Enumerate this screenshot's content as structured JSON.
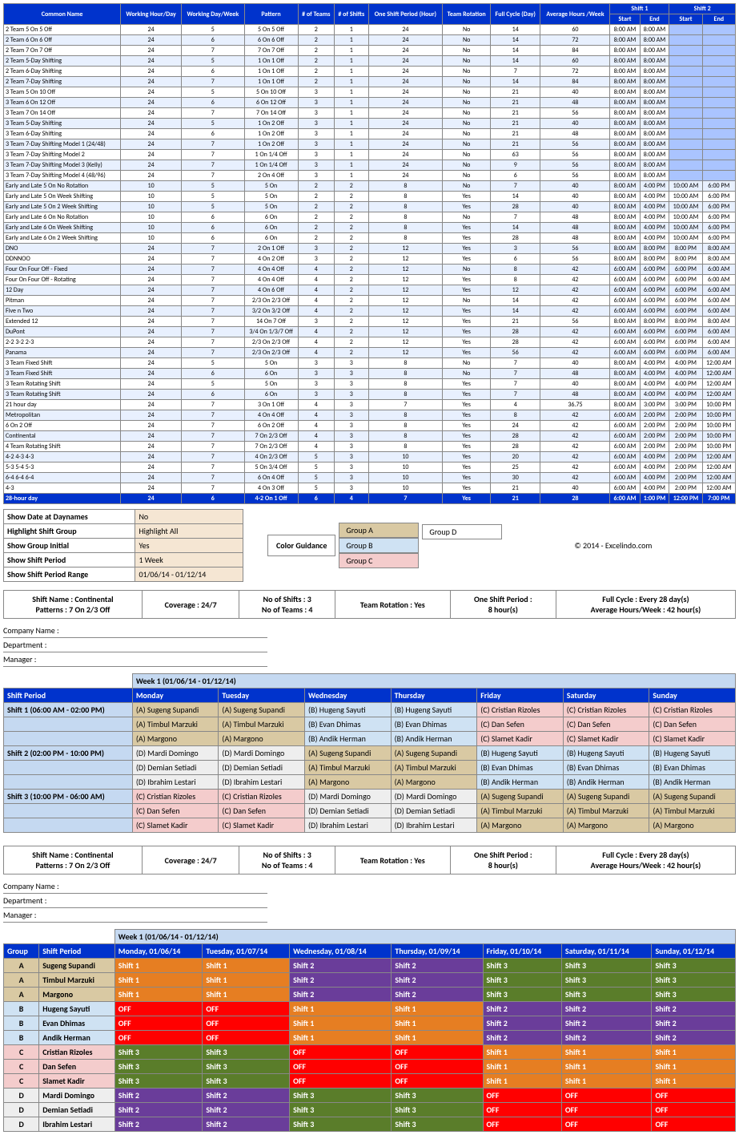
{
  "topHeaders": [
    "Common Name",
    "Working Hour/Day",
    "Working Day/Week",
    "Pattern",
    "# of Teams",
    "# of Shifts",
    "One Shift Period (Hour)",
    "Team Rotation",
    "Full Cycle (Day)",
    "Average Hours /Week",
    "Shift 1 Start",
    "Shift 1 End",
    "Shift 2 Start",
    "Shift 2 End"
  ],
  "topRows": [
    [
      "2 Team 5 On 5 Off",
      "24",
      "5",
      "5 On 5 Off",
      "2",
      "1",
      "24",
      "No",
      "14",
      "60",
      "8:00 AM",
      "8:00 AM",
      "",
      ""
    ],
    [
      "2 Team 6 On 6 Off",
      "24",
      "6",
      "6 On 6 Off",
      "2",
      "1",
      "24",
      "No",
      "14",
      "72",
      "8:00 AM",
      "8:00 AM",
      "",
      ""
    ],
    [
      "2 Team 7 On 7 Off",
      "24",
      "7",
      "7 On 7 Off",
      "2",
      "1",
      "24",
      "No",
      "14",
      "84",
      "8:00 AM",
      "8:00 AM",
      "",
      ""
    ],
    [
      "2 Team 5-Day Shifting",
      "24",
      "5",
      "1 On 1 Off",
      "2",
      "1",
      "24",
      "No",
      "14",
      "60",
      "8:00 AM",
      "8:00 AM",
      "",
      ""
    ],
    [
      "2 Team 6-Day Shifting",
      "24",
      "6",
      "1 On 1 Off",
      "2",
      "1",
      "24",
      "No",
      "7",
      "72",
      "8:00 AM",
      "8:00 AM",
      "",
      ""
    ],
    [
      "2 Team 7-Day Shifting",
      "24",
      "7",
      "1 On 1 Off",
      "2",
      "1",
      "24",
      "No",
      "14",
      "84",
      "8:00 AM",
      "8:00 AM",
      "",
      ""
    ],
    [
      "3 Team 5 On 10 Off",
      "24",
      "5",
      "5 On 10 Off",
      "3",
      "1",
      "24",
      "No",
      "21",
      "40",
      "8:00 AM",
      "8:00 AM",
      "",
      ""
    ],
    [
      "3 Team 6 On 12 Off",
      "24",
      "6",
      "6 On 12 Off",
      "3",
      "1",
      "24",
      "No",
      "21",
      "48",
      "8:00 AM",
      "8:00 AM",
      "",
      ""
    ],
    [
      "3 Team 7 On 14 Off",
      "24",
      "7",
      "7 On 14 Off",
      "3",
      "1",
      "24",
      "No",
      "21",
      "56",
      "8:00 AM",
      "8:00 AM",
      "",
      ""
    ],
    [
      "3 Team 5-Day Shifting",
      "24",
      "5",
      "1 On 2 Off",
      "3",
      "1",
      "24",
      "No",
      "21",
      "40",
      "8:00 AM",
      "8:00 AM",
      "",
      ""
    ],
    [
      "3 Team 6-Day Shifting",
      "24",
      "6",
      "1 On 2 Off",
      "3",
      "1",
      "24",
      "No",
      "21",
      "48",
      "8:00 AM",
      "8:00 AM",
      "",
      ""
    ],
    [
      "3 Team 7-Day Shifting Model 1 (24/48)",
      "24",
      "7",
      "1 On 2 Off",
      "3",
      "1",
      "24",
      "No",
      "21",
      "56",
      "8:00 AM",
      "8:00 AM",
      "",
      ""
    ],
    [
      "3 Team 7-Day Shifting Model 2",
      "24",
      "7",
      "1 On 1/4 Off",
      "3",
      "1",
      "24",
      "No",
      "63",
      "56",
      "8:00 AM",
      "8:00 AM",
      "",
      ""
    ],
    [
      "3 Team 7-Day Shifting Model 3 (Kelly)",
      "24",
      "7",
      "1 On 1/4 Off",
      "3",
      "1",
      "24",
      "No",
      "9",
      "56",
      "8:00 AM",
      "8:00 AM",
      "",
      ""
    ],
    [
      "3 Team 7-Day Shifting Model 4 (48/96)",
      "24",
      "7",
      "2 On 4 Off",
      "3",
      "1",
      "24",
      "No",
      "6",
      "56",
      "8:00 AM",
      "8:00 AM",
      "",
      ""
    ],
    [
      "Early and Late 5 On No Rotation",
      "10",
      "5",
      "5 On",
      "2",
      "2",
      "8",
      "No",
      "7",
      "40",
      "8:00 AM",
      "4:00 PM",
      "10:00 AM",
      "6:00 PM"
    ],
    [
      "Early and Late 5 On Week Shifting",
      "10",
      "5",
      "5 On",
      "2",
      "2",
      "8",
      "Yes",
      "14",
      "40",
      "8:00 AM",
      "4:00 PM",
      "10:00 AM",
      "6:00 PM"
    ],
    [
      "Early and Late 5 On 2 Week Shifting",
      "10",
      "5",
      "5 On",
      "2",
      "2",
      "8",
      "Yes",
      "28",
      "40",
      "8:00 AM",
      "4:00 PM",
      "10:00 AM",
      "6:00 PM"
    ],
    [
      "Early and Late 6 On No Rotation",
      "10",
      "6",
      "6 On",
      "2",
      "2",
      "8",
      "No",
      "7",
      "48",
      "8:00 AM",
      "4:00 PM",
      "10:00 AM",
      "6:00 PM"
    ],
    [
      "Early and Late 6 On Week Shifting",
      "10",
      "6",
      "6 On",
      "2",
      "2",
      "8",
      "Yes",
      "14",
      "48",
      "8:00 AM",
      "4:00 PM",
      "10:00 AM",
      "6:00 PM"
    ],
    [
      "Early and Late 6 On 2 Week Shifting",
      "10",
      "6",
      "6 On",
      "2",
      "2",
      "8",
      "Yes",
      "28",
      "48",
      "8:00 AM",
      "4:00 PM",
      "10:00 AM",
      "6:00 PM"
    ],
    [
      "DNO",
      "24",
      "7",
      "2 On 1 Off",
      "3",
      "2",
      "12",
      "Yes",
      "3",
      "56",
      "8:00 AM",
      "8:00 PM",
      "8:00 PM",
      "8:00 AM"
    ],
    [
      "DDNNOO",
      "24",
      "7",
      "4 On 2 Off",
      "3",
      "2",
      "12",
      "Yes",
      "6",
      "56",
      "8:00 AM",
      "8:00 PM",
      "8:00 PM",
      "8:00 AM"
    ],
    [
      "Four On Four Off - Fixed",
      "24",
      "7",
      "4 On 4 Off",
      "4",
      "2",
      "12",
      "No",
      "8",
      "42",
      "6:00 AM",
      "6:00 PM",
      "6:00 PM",
      "6:00 AM"
    ],
    [
      "Four On Four Off - Rotating",
      "24",
      "7",
      "4 On 4 Off",
      "4",
      "2",
      "12",
      "Yes",
      "8",
      "42",
      "6:00 AM",
      "6:00 PM",
      "6:00 PM",
      "6:00 AM"
    ],
    [
      "12 Day",
      "24",
      "7",
      "4 On 6 Off",
      "4",
      "2",
      "12",
      "Yes",
      "12",
      "42",
      "6:00 AM",
      "6:00 PM",
      "6:00 PM",
      "6:00 AM"
    ],
    [
      "Pitman",
      "24",
      "7",
      "2/3 On 2/3 Off",
      "4",
      "2",
      "12",
      "No",
      "14",
      "42",
      "6:00 AM",
      "6:00 PM",
      "6:00 PM",
      "6:00 AM"
    ],
    [
      "Five n Two",
      "24",
      "7",
      "3/2 On 3/2 Off",
      "4",
      "2",
      "12",
      "Yes",
      "14",
      "42",
      "6:00 AM",
      "6:00 PM",
      "6:00 PM",
      "6:00 AM"
    ],
    [
      "Extended 12",
      "24",
      "7",
      "14 On 7 Off",
      "3",
      "2",
      "12",
      "Yes",
      "21",
      "56",
      "8:00 AM",
      "8:00 PM",
      "8:00 PM",
      "8:00 AM"
    ],
    [
      "DuPont",
      "24",
      "7",
      "3/4 On 1/3/7 Off",
      "4",
      "2",
      "12",
      "Yes",
      "28",
      "42",
      "6:00 AM",
      "6:00 PM",
      "6:00 PM",
      "6:00 AM"
    ],
    [
      "2-2 3-2 2-3",
      "24",
      "7",
      "2/3 On 2/3 Off",
      "4",
      "2",
      "12",
      "Yes",
      "28",
      "42",
      "6:00 AM",
      "6:00 PM",
      "6:00 PM",
      "6:00 AM"
    ],
    [
      "Panama",
      "24",
      "7",
      "2/3 On 2/3 Off",
      "4",
      "2",
      "12",
      "Yes",
      "56",
      "42",
      "6:00 AM",
      "6:00 PM",
      "6:00 PM",
      "6:00 AM"
    ],
    [
      "3 Team Fixed Shift",
      "24",
      "5",
      "5 On",
      "3",
      "3",
      "8",
      "No",
      "7",
      "40",
      "8:00 AM",
      "4:00 PM",
      "4:00 PM",
      "12:00 AM"
    ],
    [
      "3 Team Fixed Shift",
      "24",
      "6",
      "6 On",
      "3",
      "3",
      "8",
      "No",
      "7",
      "48",
      "8:00 AM",
      "4:00 PM",
      "4:00 PM",
      "12:00 AM"
    ],
    [
      "3 Team Rotating Shift",
      "24",
      "5",
      "5 On",
      "3",
      "3",
      "8",
      "Yes",
      "7",
      "40",
      "8:00 AM",
      "4:00 PM",
      "4:00 PM",
      "12:00 AM"
    ],
    [
      "3 Team Rotating Shift",
      "24",
      "6",
      "6 On",
      "3",
      "3",
      "8",
      "Yes",
      "7",
      "48",
      "8:00 AM",
      "4:00 PM",
      "4:00 PM",
      "12:00 AM"
    ],
    [
      "21 hour day",
      "24",
      "7",
      "3 On 1 Off",
      "4",
      "3",
      "7",
      "Yes",
      "4",
      "36.75",
      "8:00 AM",
      "3:00 PM",
      "3:00 PM",
      "10:00 PM"
    ],
    [
      "Metropolitan",
      "24",
      "7",
      "4 On 4 Off",
      "4",
      "3",
      "8",
      "Yes",
      "8",
      "42",
      "6:00 AM",
      "2:00 PM",
      "2:00 PM",
      "10:00 PM"
    ],
    [
      "6 On 2 Off",
      "24",
      "7",
      "6 On 2 Off",
      "4",
      "3",
      "8",
      "Yes",
      "24",
      "42",
      "6:00 AM",
      "2:00 PM",
      "2:00 PM",
      "10:00 PM"
    ],
    [
      "Continental",
      "24",
      "7",
      "7 On 2/3 Off",
      "4",
      "3",
      "8",
      "Yes",
      "28",
      "42",
      "6:00 AM",
      "2:00 PM",
      "2:00 PM",
      "10:00 PM"
    ],
    [
      "4 Team Rotating Shift",
      "24",
      "7",
      "7 On 2/3 Off",
      "4",
      "3",
      "8",
      "Yes",
      "28",
      "42",
      "6:00 AM",
      "2:00 PM",
      "2:00 PM",
      "10:00 PM"
    ],
    [
      "4-2 4-3 4-3",
      "24",
      "7",
      "4 On 2/3 Off",
      "5",
      "3",
      "10",
      "Yes",
      "20",
      "42",
      "6:00 AM",
      "4:00 PM",
      "2:00 PM",
      "12:00 AM"
    ],
    [
      "5-3 5-4 5-3",
      "24",
      "7",
      "5 On 3/4 Off",
      "5",
      "3",
      "10",
      "Yes",
      "25",
      "42",
      "6:00 AM",
      "4:00 PM",
      "2:00 PM",
      "12:00 AM"
    ],
    [
      "6-4 6-4 6-4",
      "24",
      "7",
      "6 On 4 Off",
      "5",
      "3",
      "10",
      "Yes",
      "30",
      "42",
      "6:00 AM",
      "4:00 PM",
      "2:00 PM",
      "12:00 AM"
    ],
    [
      "4-3",
      "24",
      "7",
      "4 On 3 Off",
      "5",
      "3",
      "10",
      "Yes",
      "21",
      "40",
      "6:00 AM",
      "4:00 PM",
      "2:00 PM",
      "12:00 AM"
    ]
  ],
  "topFooter": [
    "28-hour day",
    "24",
    "6",
    "4-2 On 1 Off",
    "6",
    "4",
    "7",
    "Yes",
    "21",
    "28",
    "6:00 AM",
    "1:00 PM",
    "12:00 PM",
    "7:00 PM"
  ],
  "settings": [
    [
      "Show Date at Daynames",
      "No"
    ],
    [
      "Highlight Shift Group",
      "Highlight All"
    ],
    [
      "Show Group Initial",
      "Yes"
    ],
    [
      "Show Shift Period",
      "1 Week"
    ],
    [
      "Show Shift Period Range",
      "01/06/14 - 01/12/14"
    ]
  ],
  "colorGuidance": {
    "label": "Color Guidance",
    "groups": [
      "Group A",
      "Group B",
      "Group C",
      "Group D"
    ]
  },
  "copyright": "© 2014 - Excelindo.com",
  "infoBar": [
    [
      "Shift Name : Continental",
      "Patterns : 7 On 2/3 Off"
    ],
    [
      "Coverage : 24/7"
    ],
    [
      "No of Shifts : 3",
      "No of Teams : 4"
    ],
    [
      "Team Rotation : Yes"
    ],
    [
      "One Shift Period :",
      "8 hour(s)"
    ],
    [
      "Full Cycle : Every 28 day(s)",
      "Average Hours/Week : 42 hour(s)"
    ]
  ],
  "metaLines": [
    "Company Name :",
    "Department :",
    "Manager :"
  ],
  "weekLabel": "Week 1 (01/06/14 - 01/12/14)",
  "sched1": {
    "headers": [
      "Shift Period",
      "Monday",
      "Tuesday",
      "Wednesday",
      "Thursday",
      "Friday",
      "Saturday",
      "Sunday"
    ],
    "periods": [
      "Shift 1 (06:00 AM - 02:00 PM)",
      "Shift 2 (02:00 PM - 10:00 PM)",
      "Shift 3 (10:00 PM - 06:00 AM)"
    ],
    "block1": [
      [
        [
          "A",
          "(A) Sugeng Supandi"
        ],
        [
          "A",
          "(A) Sugeng Supandi"
        ],
        [
          "B",
          "(B) Hugeng Sayuti"
        ],
        [
          "B",
          "(B) Hugeng Sayuti"
        ],
        [
          "C",
          "(C) Cristian Rizoles"
        ],
        [
          "C",
          "(C) Cristian Rizoles"
        ],
        [
          "C",
          "(C) Cristian Rizoles"
        ]
      ],
      [
        [
          "A",
          "(A) Timbul Marzuki"
        ],
        [
          "A",
          "(A) Timbul Marzuki"
        ],
        [
          "B",
          "(B) Evan Dhimas"
        ],
        [
          "B",
          "(B) Evan Dhimas"
        ],
        [
          "C",
          "(C) Dan Sefen"
        ],
        [
          "C",
          "(C) Dan Sefen"
        ],
        [
          "C",
          "(C) Dan Sefen"
        ]
      ],
      [
        [
          "A",
          "(A) Margono"
        ],
        [
          "A",
          "(A) Margono"
        ],
        [
          "B",
          "(B) Andik Herman"
        ],
        [
          "B",
          "(B) Andik Herman"
        ],
        [
          "C",
          "(C) Slamet Kadir"
        ],
        [
          "C",
          "(C) Slamet Kadir"
        ],
        [
          "C",
          "(C) Slamet Kadir"
        ]
      ]
    ],
    "block2": [
      [
        [
          "D",
          "(D) Mardi Domingo"
        ],
        [
          "D",
          "(D) Mardi Domingo"
        ],
        [
          "A",
          "(A) Sugeng Supandi"
        ],
        [
          "A",
          "(A) Sugeng Supandi"
        ],
        [
          "B",
          "(B) Hugeng Sayuti"
        ],
        [
          "B",
          "(B) Hugeng Sayuti"
        ],
        [
          "B",
          "(B) Hugeng Sayuti"
        ]
      ],
      [
        [
          "D",
          "(D) Demian Setiadi"
        ],
        [
          "D",
          "(D) Demian Setiadi"
        ],
        [
          "A",
          "(A) Timbul Marzuki"
        ],
        [
          "A",
          "(A) Timbul Marzuki"
        ],
        [
          "B",
          "(B) Evan Dhimas"
        ],
        [
          "B",
          "(B) Evan Dhimas"
        ],
        [
          "B",
          "(B) Evan Dhimas"
        ]
      ],
      [
        [
          "D",
          "(D) Ibrahim Lestari"
        ],
        [
          "D",
          "(D) Ibrahim Lestari"
        ],
        [
          "A",
          "(A) Margono"
        ],
        [
          "A",
          "(A) Margono"
        ],
        [
          "B",
          "(B) Andik Herman"
        ],
        [
          "B",
          "(B) Andik Herman"
        ],
        [
          "B",
          "(B) Andik Herman"
        ]
      ]
    ],
    "block3": [
      [
        [
          "C",
          "(C) Cristian Rizoles"
        ],
        [
          "C",
          "(C) Cristian Rizoles"
        ],
        [
          "D",
          "(D) Mardi Domingo"
        ],
        [
          "D",
          "(D) Mardi Domingo"
        ],
        [
          "A",
          "(A) Sugeng Supandi"
        ],
        [
          "A",
          "(A) Sugeng Supandi"
        ],
        [
          "A",
          "(A) Sugeng Supandi"
        ]
      ],
      [
        [
          "C",
          "(C) Dan Sefen"
        ],
        [
          "C",
          "(C) Dan Sefen"
        ],
        [
          "D",
          "(D) Demian Setiadi"
        ],
        [
          "D",
          "(D) Demian Setiadi"
        ],
        [
          "A",
          "(A) Timbul Marzuki"
        ],
        [
          "A",
          "(A) Timbul Marzuki"
        ],
        [
          "A",
          "(A) Timbul Marzuki"
        ]
      ],
      [
        [
          "C",
          "(C) Slamet Kadir"
        ],
        [
          "C",
          "(C) Slamet Kadir"
        ],
        [
          "D",
          "(D) Ibrahim Lestari"
        ],
        [
          "D",
          "(D) Ibrahim Lestari"
        ],
        [
          "A",
          "(A) Margono"
        ],
        [
          "A",
          "(A) Margono"
        ],
        [
          "A",
          "(A) Margono"
        ]
      ]
    ]
  },
  "sched2": {
    "headers": [
      "Group",
      "Shift Period",
      "Monday, 01/06/14",
      "Tuesday, 01/07/14",
      "Wednesday, 01/08/14",
      "Thursday, 01/09/14",
      "Friday, 01/10/14",
      "Saturday, 01/11/14",
      "Sunday, 01/12/14"
    ],
    "rows": [
      [
        "A",
        "Sugeng Supandi",
        "s1",
        "s1",
        "s2",
        "s2",
        "s3",
        "s3",
        "s3"
      ],
      [
        "A",
        "Timbul Marzuki",
        "s1",
        "s1",
        "s2",
        "s2",
        "s3",
        "s3",
        "s3"
      ],
      [
        "A",
        "Margono",
        "s1",
        "s1",
        "s2",
        "s2",
        "s3",
        "s3",
        "s3"
      ],
      [
        "B",
        "Hugeng Sayuti",
        "off",
        "off",
        "s1",
        "s1",
        "s2",
        "s2",
        "s2"
      ],
      [
        "B",
        "Evan Dhimas",
        "off",
        "off",
        "s1",
        "s1",
        "s2",
        "s2",
        "s2"
      ],
      [
        "B",
        "Andik Herman",
        "off",
        "off",
        "s1",
        "s1",
        "s2",
        "s2",
        "s2"
      ],
      [
        "C",
        "Cristian Rizoles",
        "s3",
        "s3",
        "off",
        "off",
        "s1",
        "s1",
        "s1"
      ],
      [
        "C",
        "Dan Sefen",
        "s3",
        "s3",
        "off",
        "off",
        "s1",
        "s1",
        "s1"
      ],
      [
        "C",
        "Slamet Kadir",
        "s3",
        "s3",
        "off",
        "off",
        "s1",
        "s1",
        "s1"
      ],
      [
        "D",
        "Mardi Domingo",
        "s2",
        "s2",
        "s3",
        "s3",
        "off",
        "off",
        "off"
      ],
      [
        "D",
        "Demian Setiadi",
        "s2",
        "s2",
        "s3",
        "s3",
        "off",
        "off",
        "off"
      ],
      [
        "D",
        "Ibrahim Lestari",
        "s2",
        "s2",
        "s3",
        "s3",
        "off",
        "off",
        "off"
      ]
    ],
    "labels": {
      "s1": "Shift 1",
      "s2": "Shift 2",
      "s3": "Shift 3",
      "off": "OFF"
    }
  }
}
